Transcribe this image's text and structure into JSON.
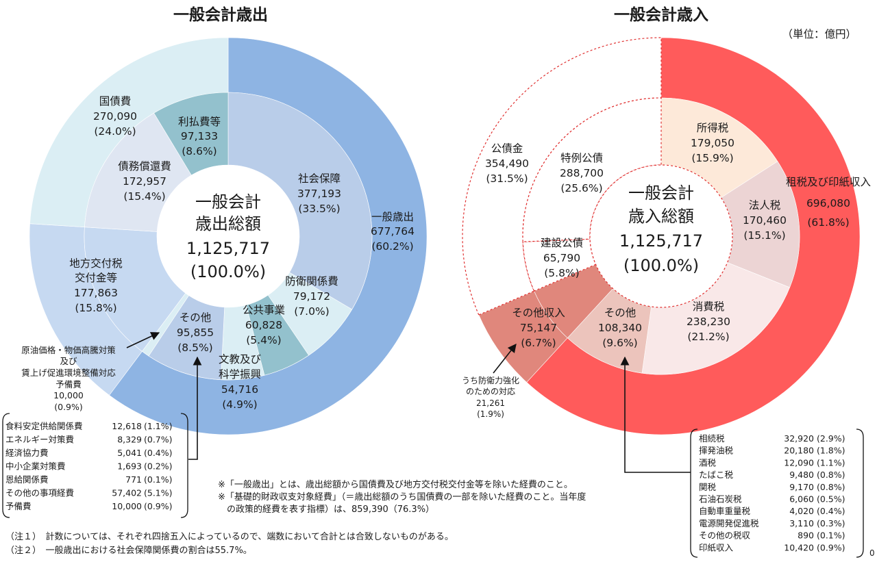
{
  "unit": "（単位：億円）",
  "page_number": "0",
  "chart_data": [
    {
      "type": "pie",
      "title": "一般会計歳出",
      "center": [
        "一般会計",
        "歳出総額",
        "1,125,717",
        "(100.0%)"
      ],
      "outer": [
        {
          "name": "一般歳出",
          "value": 677764,
          "pct": "60.2%",
          "color": "#8eb4e3"
        },
        {
          "name": "地方交付税交付金等",
          "value": 177863,
          "pct": "15.8%",
          "color": "#c6d9f1"
        },
        {
          "name": "国債費",
          "value": 270090,
          "pct": "24.0%",
          "color": "#dbeef4"
        }
      ],
      "inner": [
        {
          "name": "社会保障",
          "value": 377193,
          "pct": "33.5%",
          "color": "#b9cde9"
        },
        {
          "name": "防衛関係費",
          "value": 79172,
          "pct": "7.0%",
          "color": "#dbeef4"
        },
        {
          "name": "公共事業",
          "value": 60828,
          "pct": "5.4%",
          "color": "#93c1cd"
        },
        {
          "name": "文教及び科学振興",
          "value": 54716,
          "pct": "4.9%",
          "color": "#dbeef4"
        },
        {
          "name": "その他",
          "value": 95855,
          "pct": "8.5%",
          "color": "#b9cde9"
        },
        {
          "name": "原油価格・物価高騰対策及び賃上げ促進環境整備対応予備費",
          "value": 10000,
          "pct": "0.9%",
          "color": "#dbeef4"
        },
        {
          "name": "地方交付税交付金等",
          "value": 177863,
          "pct": "15.8%",
          "color": "#c6d9f1"
        },
        {
          "name": "債務償還費",
          "value": 172957,
          "pct": "15.4%",
          "color": "#dfe6f2"
        },
        {
          "name": "利払費等",
          "value": 97133,
          "pct": "8.6%",
          "color": "#93c1cd"
        }
      ],
      "labels": {
        "kokusaihi": [
          "国債費",
          "270,090",
          "(24.0%)"
        ],
        "saimu": [
          "債務償還費",
          "172,957",
          "(15.4%)"
        ],
        "riharai": [
          "利払費等",
          "97,133",
          "(8.6%)"
        ],
        "shakai": [
          "社会保障",
          "377,193",
          "(33.5%)"
        ],
        "ippan": [
          "一般歳出",
          "677,764",
          "(60.2%)"
        ],
        "chiho": [
          "地方交付税",
          "交付金等",
          "177,863",
          "(15.8%)"
        ],
        "boei": [
          "防衛関係費",
          "79,172",
          "(7.0%)"
        ],
        "kokyo": [
          "公共事業",
          "60,828",
          "(5.4%)"
        ],
        "sonota": [
          "その他",
          "95,855",
          "(8.5%)"
        ],
        "bunkyo": [
          "文教及び",
          "科学振興",
          "54,716",
          "(4.9%)"
        ],
        "yobihi": [
          "原油価格・物価高騰対策",
          "及び",
          "賃上げ促進環境整備対応",
          "予備費",
          "10,000",
          "(0.9%)"
        ]
      },
      "breakdown": [
        {
          "name": "食料安定供給関係費",
          "value": "12,618",
          "pct": "(1.1%)"
        },
        {
          "name": "エネルギー対策費",
          "value": "8,329",
          "pct": "(0.7%)"
        },
        {
          "name": "経済協力費",
          "value": "5,041",
          "pct": "(0.4%)"
        },
        {
          "name": "中小企業対策費",
          "value": "1,693",
          "pct": "(0.2%)"
        },
        {
          "name": "恩給関係費",
          "value": "771",
          "pct": "(0.1%)"
        },
        {
          "name": "その他の事項経費",
          "value": "57,402",
          "pct": "(5.1%)"
        },
        {
          "name": "予備費",
          "value": "10,000",
          "pct": "(0.9%)"
        }
      ]
    },
    {
      "type": "pie",
      "title": "一般会計歳入",
      "center": [
        "一般会計",
        "歳入総額",
        "1,125,717",
        "(100.0%)"
      ],
      "outer": [
        {
          "name": "租税及び印紙収入",
          "value": 696080,
          "pct": "61.8%",
          "color": "#ff5b5b"
        },
        {
          "name": "その他収入",
          "value": 75147,
          "pct": "6.7%",
          "color": "#e0877c"
        },
        {
          "name": "公債金",
          "value": 354490,
          "pct": "31.5%",
          "color": "#ffffff"
        }
      ],
      "inner": [
        {
          "name": "所得税",
          "value": 179050,
          "pct": "15.9%",
          "color": "#fde9d9"
        },
        {
          "name": "法人税",
          "value": 170460,
          "pct": "15.1%",
          "color": "#ecd4d4"
        },
        {
          "name": "消費税",
          "value": 238230,
          "pct": "21.2%",
          "color": "#f9e8e8"
        },
        {
          "name": "その他",
          "value": 108340,
          "pct": "9.6%",
          "color": "#ecc4bc"
        },
        {
          "name": "その他収入",
          "value": 75147,
          "pct": "6.7%",
          "color": "#e0877c"
        },
        {
          "name": "建設公債",
          "value": 65790,
          "pct": "5.8%",
          "color": "#ffffff"
        },
        {
          "name": "特例公債",
          "value": 288700,
          "pct": "25.6%",
          "color": "#ffffff"
        }
      ],
      "labels": {
        "kosaikin": [
          "公債金",
          "354,490",
          "(31.5%)"
        ],
        "tokurei": [
          "特例公債",
          "288,700",
          "(25.6%)"
        ],
        "shotoku": [
          "所得税",
          "179,050",
          "(15.9%)"
        ],
        "sozei": [
          "租税及び印紙収入",
          "696,080",
          "(61.8%)"
        ],
        "hojin": [
          "法人税",
          "170,460",
          "(15.1%)"
        ],
        "kensetsu": [
          "建設公債",
          "65,790",
          "(5.8%)"
        ],
        "sonotashunyu": [
          "その他収入",
          "75,147",
          "(6.7%)"
        ],
        "sonota": [
          "その他",
          "108,340",
          "(9.6%)"
        ],
        "shohi": [
          "消費税",
          "238,230",
          "(21.2%)"
        ],
        "boeikyoka": [
          "うち防衛力強化",
          "のための対応",
          "21,261",
          "(1.9%)"
        ]
      },
      "breakdown": [
        {
          "name": "相続税",
          "value": "32,920",
          "pct": "(2.9%)"
        },
        {
          "name": "揮発油税",
          "value": "20,180",
          "pct": "(1.8%)"
        },
        {
          "name": "酒税",
          "value": "12,090",
          "pct": "(1.1%)"
        },
        {
          "name": "たばこ税",
          "value": "9,480",
          "pct": "(0.8%)"
        },
        {
          "name": "関税",
          "value": "9,170",
          "pct": "(0.8%)"
        },
        {
          "name": "石油石炭税",
          "value": "6,060",
          "pct": "(0.5%)"
        },
        {
          "name": "自動車重量税",
          "value": "4,020",
          "pct": "(0.4%)"
        },
        {
          "name": "電源開発促進税",
          "value": "3,110",
          "pct": "(0.3%)"
        },
        {
          "name": "その他の税収",
          "value": "890",
          "pct": "(0.1%)"
        },
        {
          "name": "印紙収入",
          "value": "10,420",
          "pct": "(0.9%)"
        }
      ]
    }
  ],
  "footnotes": [
    "※「一般歳出」とは、歳出総額から国債費及び地方交付税交付金等を除いた経費のこと。",
    "※「基礎的財政収支対象経費」（＝歳出総額のうち国債費の一部を除いた経費のこと。当年度",
    "　の政策的経費を表す指標）は、859,390（76.3%）"
  ],
  "notes": [
    "（注１）　計数については、それぞれ四捨五入によっているので、端数において合計とは合致しないものがある。",
    "（注２）　一般歳出における社会保障関係費の割合は55.7%。"
  ]
}
